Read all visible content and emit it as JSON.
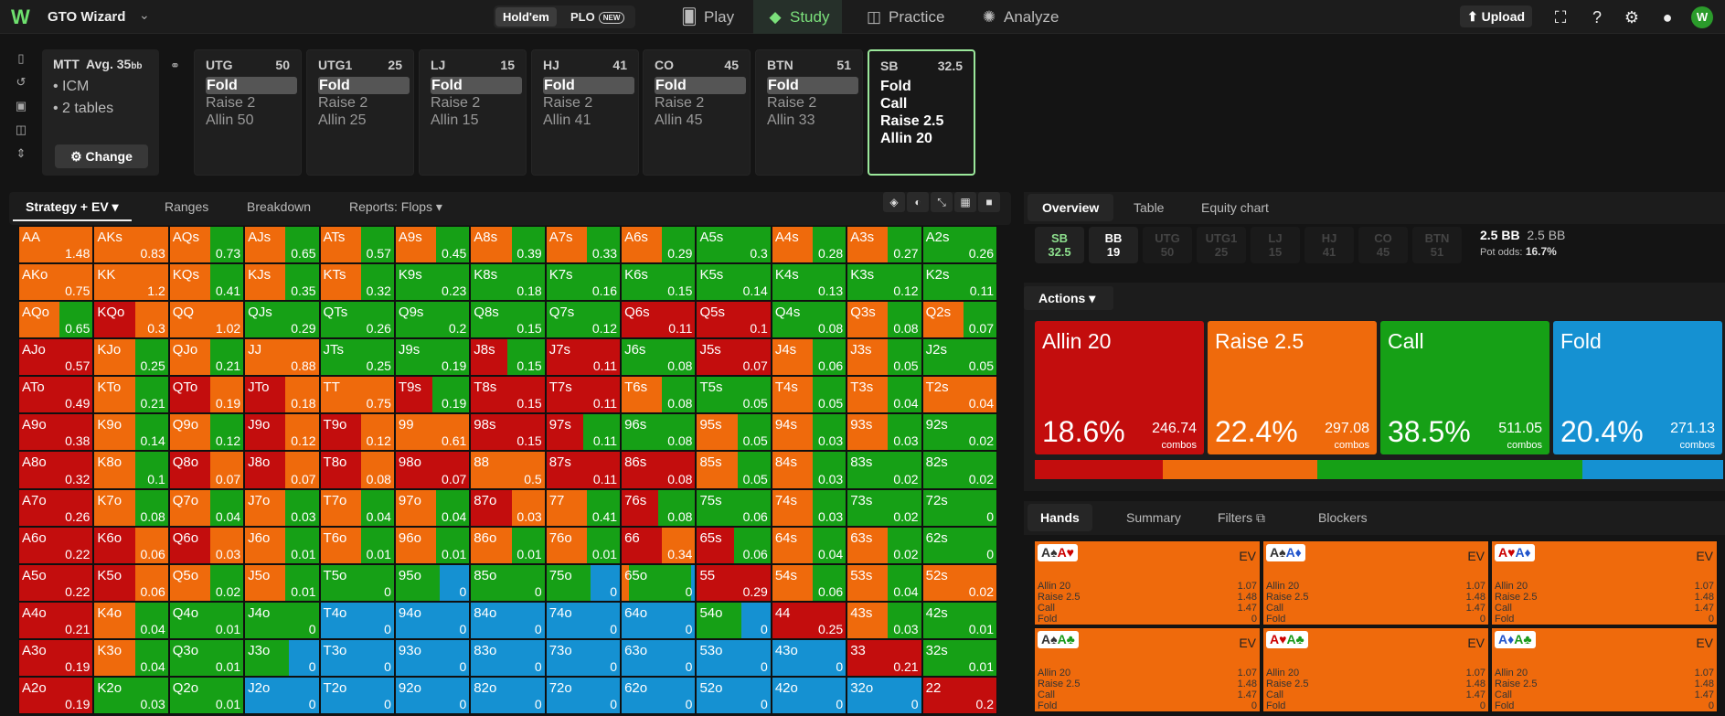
{
  "app": {
    "brand": "GTO Wizard",
    "logo": "W",
    "holdem": "Hold'em",
    "plo": "PLO",
    "new_badge": "NEW",
    "upload": "Upload",
    "avatar": "W"
  },
  "nav": [
    {
      "label": "Play",
      "icon": "cards-icon"
    },
    {
      "label": "Study",
      "icon": "study-icon"
    },
    {
      "label": "Practice",
      "icon": "gamepad-icon"
    },
    {
      "label": "Analyze",
      "icon": "bulb-icon"
    }
  ],
  "mtt": {
    "title": "MTT",
    "avg": "Avg. 35",
    "avg_unit": "bb",
    "items": [
      "ICM",
      "2 tables"
    ],
    "change": "Change"
  },
  "positions": [
    {
      "name": "UTG",
      "stack": "50",
      "actions": [
        "Fold",
        "Raise 2",
        "Allin 50"
      ]
    },
    {
      "name": "UTG1",
      "stack": "25",
      "actions": [
        "Fold",
        "Raise 2",
        "Allin 25"
      ]
    },
    {
      "name": "LJ",
      "stack": "15",
      "actions": [
        "Fold",
        "Raise 2",
        "Allin 15"
      ]
    },
    {
      "name": "HJ",
      "stack": "41",
      "actions": [
        "Fold",
        "Raise 2",
        "Allin 41"
      ]
    },
    {
      "name": "CO",
      "stack": "45",
      "actions": [
        "Fold",
        "Raise 2",
        "Allin 45"
      ]
    },
    {
      "name": "BTN",
      "stack": "51",
      "actions": [
        "Fold",
        "Raise 2",
        "Allin 33"
      ]
    },
    {
      "name": "SB",
      "stack": "32.5",
      "actions": [
        "Fold",
        "Call",
        "Raise 2.5",
        "Allin 20"
      ]
    }
  ],
  "left_tabs": [
    "Strategy + EV",
    "Ranges",
    "Breakdown",
    "Reports: Flops"
  ],
  "right_tabs": [
    "Overview",
    "Table",
    "Equity chart"
  ],
  "seats": [
    {
      "n": "SB",
      "v": "32.5"
    },
    {
      "n": "BB",
      "v": "19"
    },
    {
      "n": "UTG",
      "v": "50"
    },
    {
      "n": "UTG1",
      "v": "25"
    },
    {
      "n": "LJ",
      "v": "15"
    },
    {
      "n": "HJ",
      "v": "41"
    },
    {
      "n": "CO",
      "v": "45"
    },
    {
      "n": "BTN",
      "v": "51"
    }
  ],
  "pot": {
    "main": "2.5 BB",
    "sub": "2.5 BB",
    "odds_label": "Pot odds:",
    "odds": "16.7%"
  },
  "actions_label": "Actions",
  "action_summary": [
    {
      "name": "Allin 20",
      "pct": "18.6%",
      "combos": "246.74",
      "color": "#c30d0d"
    },
    {
      "name": "Raise 2.5",
      "pct": "22.4%",
      "combos": "297.08",
      "color": "#ef6a0c"
    },
    {
      "name": "Call",
      "pct": "38.5%",
      "combos": "511.05",
      "color": "#16a016"
    },
    {
      "name": "Fold",
      "pct": "20.4%",
      "combos": "271.13",
      "color": "#1591d2"
    }
  ],
  "combos_label": "combos",
  "hand_tabs": [
    "Hands",
    "Summary",
    "Filters",
    "Blockers"
  ],
  "hand_cards": [
    {
      "c1": "A♠",
      "c2": "A♥",
      "c1c": "#333",
      "c2c": "#c00"
    },
    {
      "c1": "A♠",
      "c2": "A♦",
      "c1c": "#333",
      "c2c": "#2255cc"
    },
    {
      "c1": "A♥",
      "c2": "A♦",
      "c1c": "#c00",
      "c2c": "#2255cc"
    },
    {
      "c1": "A♠",
      "c2": "A♣",
      "c1c": "#333",
      "c2c": "#1a9a1a"
    },
    {
      "c1": "A♥",
      "c2": "A♣",
      "c1c": "#c00",
      "c2c": "#1a9a1a"
    },
    {
      "c1": "A♦",
      "c2": "A♣",
      "c1c": "#2255cc",
      "c2c": "#1a9a1a"
    }
  ],
  "hand_rows": [
    {
      "a": "Allin 20",
      "v": "1.07"
    },
    {
      "a": "Raise 2.5",
      "v": "1.48"
    },
    {
      "a": "Call",
      "v": "1.47"
    },
    {
      "a": "Fold",
      "v": "0"
    }
  ],
  "ev_label": "EV",
  "colors": {
    "allin": "#c30d0d",
    "raise": "#ef6a0c",
    "call": "#16a016",
    "fold": "#1591d2"
  },
  "matrix": [
    [
      [
        "AA",
        "1.48",
        "R"
      ],
      [
        "AKs",
        "0.83",
        "R"
      ],
      [
        "AQs",
        "0.73",
        "RC"
      ],
      [
        "AJs",
        "0.65",
        "RC"
      ],
      [
        "ATs",
        "0.57",
        "RC"
      ],
      [
        "A9s",
        "0.45",
        "RC"
      ],
      [
        "A8s",
        "0.39",
        "RC"
      ],
      [
        "A7s",
        "0.33",
        "RC"
      ],
      [
        "A6s",
        "0.29",
        "RC"
      ],
      [
        "A5s",
        "0.3",
        "C"
      ],
      [
        "A4s",
        "0.28",
        "RC"
      ],
      [
        "A3s",
        "0.27",
        "RC"
      ],
      [
        "A2s",
        "0.26",
        "C"
      ]
    ],
    [
      [
        "AKo",
        "0.75",
        "R"
      ],
      [
        "KK",
        "1.2",
        "R"
      ],
      [
        "KQs",
        "0.41",
        "RC"
      ],
      [
        "KJs",
        "0.35",
        "RC"
      ],
      [
        "KTs",
        "0.32",
        "RC"
      ],
      [
        "K9s",
        "0.23",
        "C"
      ],
      [
        "K8s",
        "0.18",
        "C"
      ],
      [
        "K7s",
        "0.16",
        "C"
      ],
      [
        "K6s",
        "0.15",
        "C"
      ],
      [
        "K5s",
        "0.14",
        "C"
      ],
      [
        "K4s",
        "0.13",
        "C"
      ],
      [
        "K3s",
        "0.12",
        "C"
      ],
      [
        "K2s",
        "0.11",
        "C"
      ]
    ],
    [
      [
        "AQo",
        "0.65",
        "RC"
      ],
      [
        "KQo",
        "0.3",
        "AR"
      ],
      [
        "QQ",
        "1.02",
        "R"
      ],
      [
        "QJs",
        "0.29",
        "C"
      ],
      [
        "QTs",
        "0.26",
        "C"
      ],
      [
        "Q9s",
        "0.2",
        "C"
      ],
      [
        "Q8s",
        "0.15",
        "C"
      ],
      [
        "Q7s",
        "0.12",
        "C"
      ],
      [
        "Q6s",
        "0.11",
        "A"
      ],
      [
        "Q5s",
        "0.1",
        "A"
      ],
      [
        "Q4s",
        "0.08",
        "C"
      ],
      [
        "Q3s",
        "0.08",
        "RC"
      ],
      [
        "Q2s",
        "0.07",
        "RC"
      ]
    ],
    [
      [
        "AJo",
        "0.57",
        "A"
      ],
      [
        "KJo",
        "0.25",
        "RC"
      ],
      [
        "QJo",
        "0.21",
        "RC"
      ],
      [
        "JJ",
        "0.88",
        "R"
      ],
      [
        "JTs",
        "0.25",
        "C"
      ],
      [
        "J9s",
        "0.19",
        "C"
      ],
      [
        "J8s",
        "0.15",
        "AC"
      ],
      [
        "J7s",
        "0.11",
        "A"
      ],
      [
        "J6s",
        "0.08",
        "C"
      ],
      [
        "J5s",
        "0.07",
        "A"
      ],
      [
        "J4s",
        "0.06",
        "RC"
      ],
      [
        "J3s",
        "0.05",
        "RC"
      ],
      [
        "J2s",
        "0.05",
        "C"
      ]
    ],
    [
      [
        "ATo",
        "0.49",
        "A"
      ],
      [
        "KTo",
        "0.21",
        "RC"
      ],
      [
        "QTo",
        "0.19",
        "AR"
      ],
      [
        "JTo",
        "0.18",
        "AR"
      ],
      [
        "TT",
        "0.75",
        "R"
      ],
      [
        "T9s",
        "0.19",
        "AC"
      ],
      [
        "T8s",
        "0.15",
        "A"
      ],
      [
        "T7s",
        "0.11",
        "A"
      ],
      [
        "T6s",
        "0.08",
        "RC"
      ],
      [
        "T5s",
        "0.05",
        "C"
      ],
      [
        "T4s",
        "0.05",
        "RC"
      ],
      [
        "T3s",
        "0.04",
        "RC"
      ],
      [
        "T2s",
        "0.04",
        "R"
      ]
    ],
    [
      [
        "A9o",
        "0.38",
        "A"
      ],
      [
        "K9o",
        "0.14",
        "RC"
      ],
      [
        "Q9o",
        "0.12",
        "RC"
      ],
      [
        "J9o",
        "0.12",
        "AR"
      ],
      [
        "T9o",
        "0.12",
        "AR"
      ],
      [
        "99",
        "0.61",
        "R"
      ],
      [
        "98s",
        "0.15",
        "A"
      ],
      [
        "97s",
        "0.11",
        "AC"
      ],
      [
        "96s",
        "0.08",
        "C"
      ],
      [
        "95s",
        "0.05",
        "RC"
      ],
      [
        "94s",
        "0.03",
        "RC"
      ],
      [
        "93s",
        "0.03",
        "RC"
      ],
      [
        "92s",
        "0.02",
        "C"
      ]
    ],
    [
      [
        "A8o",
        "0.32",
        "A"
      ],
      [
        "K8o",
        "0.1",
        "RC"
      ],
      [
        "Q8o",
        "0.07",
        "AR"
      ],
      [
        "J8o",
        "0.07",
        "AR"
      ],
      [
        "T8o",
        "0.08",
        "AR"
      ],
      [
        "98o",
        "0.07",
        "A"
      ],
      [
        "88",
        "0.5",
        "R"
      ],
      [
        "87s",
        "0.11",
        "A"
      ],
      [
        "86s",
        "0.08",
        "A"
      ],
      [
        "85s",
        "0.05",
        "RC"
      ],
      [
        "84s",
        "0.03",
        "RC"
      ],
      [
        "83s",
        "0.02",
        "C"
      ],
      [
        "82s",
        "0.02",
        "C"
      ]
    ],
    [
      [
        "A7o",
        "0.26",
        "A"
      ],
      [
        "K7o",
        "0.08",
        "RC"
      ],
      [
        "Q7o",
        "0.04",
        "RC"
      ],
      [
        "J7o",
        "0.03",
        "RC"
      ],
      [
        "T7o",
        "0.04",
        "RC"
      ],
      [
        "97o",
        "0.04",
        "RC"
      ],
      [
        "87o",
        "0.03",
        "AR"
      ],
      [
        "77",
        "0.41",
        "RC"
      ],
      [
        "76s",
        "0.08",
        "AC"
      ],
      [
        "75s",
        "0.06",
        "C"
      ],
      [
        "74s",
        "0.03",
        "RC"
      ],
      [
        "73s",
        "0.02",
        "C"
      ],
      [
        "72s",
        "0",
        "C"
      ]
    ],
    [
      [
        "A6o",
        "0.22",
        "A"
      ],
      [
        "K6o",
        "0.06",
        "AR"
      ],
      [
        "Q6o",
        "0.03",
        "AR"
      ],
      [
        "J6o",
        "0.01",
        "RC"
      ],
      [
        "T6o",
        "0.01",
        "RC"
      ],
      [
        "96o",
        "0.01",
        "RC"
      ],
      [
        "86o",
        "0.01",
        "RC"
      ],
      [
        "76o",
        "0.01",
        "RC"
      ],
      [
        "66",
        "0.34",
        "AR"
      ],
      [
        "65s",
        "0.06",
        "AC"
      ],
      [
        "64s",
        "0.04",
        "RC"
      ],
      [
        "63s",
        "0.02",
        "RC"
      ],
      [
        "62s",
        "0",
        "C"
      ]
    ],
    [
      [
        "A5o",
        "0.22",
        "A"
      ],
      [
        "K5o",
        "0.06",
        "AR"
      ],
      [
        "Q5o",
        "0.02",
        "RC"
      ],
      [
        "J5o",
        "0.01",
        "RC"
      ],
      [
        "T5o",
        "0",
        "C"
      ],
      [
        "95o",
        "0",
        "CF"
      ],
      [
        "85o",
        "0",
        "C"
      ],
      [
        "75o",
        "0",
        "CF"
      ],
      [
        "65o",
        "0",
        "RF"
      ],
      [
        "55",
        "0.29",
        "A"
      ],
      [
        "54s",
        "0.06",
        "RC"
      ],
      [
        "53s",
        "0.04",
        "RC"
      ],
      [
        "52s",
        "0.02",
        "R"
      ]
    ],
    [
      [
        "A4o",
        "0.21",
        "A"
      ],
      [
        "K4o",
        "0.04",
        "RC"
      ],
      [
        "Q4o",
        "0.01",
        "C"
      ],
      [
        "J4o",
        "0",
        "C"
      ],
      [
        "T4o",
        "0",
        "F"
      ],
      [
        "94o",
        "0",
        "F"
      ],
      [
        "84o",
        "0",
        "F"
      ],
      [
        "74o",
        "0",
        "F"
      ],
      [
        "64o",
        "0",
        "F"
      ],
      [
        "54o",
        "0",
        "CF"
      ],
      [
        "44",
        "0.25",
        "A"
      ],
      [
        "43s",
        "0.03",
        "RC"
      ],
      [
        "42s",
        "0.01",
        "C"
      ]
    ],
    [
      [
        "A3o",
        "0.19",
        "A"
      ],
      [
        "K3o",
        "0.04",
        "RC"
      ],
      [
        "Q3o",
        "0.01",
        "C"
      ],
      [
        "J3o",
        "0",
        "CF"
      ],
      [
        "T3o",
        "0",
        "F"
      ],
      [
        "93o",
        "0",
        "F"
      ],
      [
        "83o",
        "0",
        "F"
      ],
      [
        "73o",
        "0",
        "F"
      ],
      [
        "63o",
        "0",
        "F"
      ],
      [
        "53o",
        "0",
        "F"
      ],
      [
        "43o",
        "0",
        "F"
      ],
      [
        "33",
        "0.21",
        "A"
      ],
      [
        "32s",
        "0.01",
        "C"
      ]
    ],
    [
      [
        "A2o",
        "0.19",
        "A"
      ],
      [
        "K2o",
        "0.03",
        "C"
      ],
      [
        "Q2o",
        "0.01",
        "C"
      ],
      [
        "J2o",
        "0",
        "F"
      ],
      [
        "T2o",
        "0",
        "F"
      ],
      [
        "92o",
        "0",
        "F"
      ],
      [
        "82o",
        "0",
        "F"
      ],
      [
        "72o",
        "0",
        "F"
      ],
      [
        "62o",
        "0",
        "F"
      ],
      [
        "52o",
        "0",
        "F"
      ],
      [
        "42o",
        "0",
        "F"
      ],
      [
        "32o",
        "0",
        "F"
      ],
      [
        "22",
        "0.2",
        "A"
      ]
    ]
  ]
}
